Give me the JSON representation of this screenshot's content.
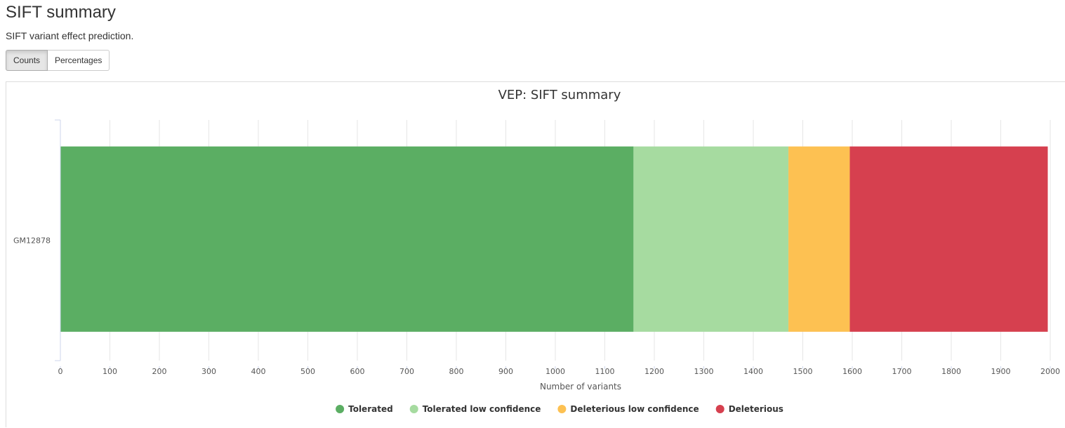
{
  "header": {
    "title": "SIFT summary",
    "description": "SIFT variant effect prediction."
  },
  "toggle": {
    "counts_label": "Counts",
    "percentages_label": "Percentages"
  },
  "chart_data": {
    "type": "bar",
    "orientation": "horizontal",
    "stacked": true,
    "title": "VEP: SIFT summary",
    "xlabel": "Number of variants",
    "ylabel": "",
    "xlim": [
      0,
      2000
    ],
    "xticks": [
      0,
      100,
      200,
      300,
      400,
      500,
      600,
      700,
      800,
      900,
      1000,
      1100,
      1200,
      1300,
      1400,
      1500,
      1600,
      1700,
      1800,
      1900,
      2000
    ],
    "grid": true,
    "legend_position": "bottom",
    "categories": [
      "GM12878"
    ],
    "series": [
      {
        "name": "Tolerated",
        "color": "#5bae63",
        "values": [
          1158
        ]
      },
      {
        "name": "Tolerated low confidence",
        "color": "#a6dba0",
        "values": [
          313
        ]
      },
      {
        "name": "Deleterious low confidence",
        "color": "#fdc152",
        "values": [
          124
        ]
      },
      {
        "name": "Deleterious",
        "color": "#d6404f",
        "values": [
          400
        ]
      }
    ]
  }
}
